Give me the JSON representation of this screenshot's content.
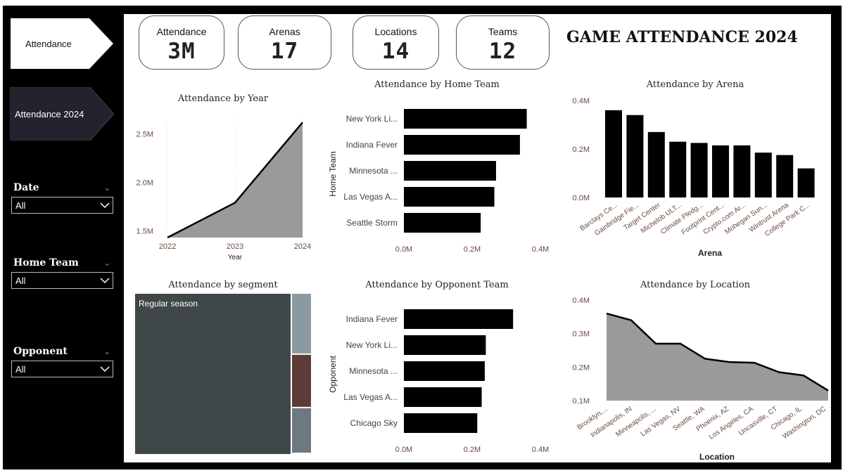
{
  "nav": {
    "btn1": "Attendance",
    "btn2": "Attendance 2024"
  },
  "slicers": [
    {
      "title": "Date",
      "value": "All"
    },
    {
      "title": "Home Team",
      "value": "All"
    },
    {
      "title": "Opponent",
      "value": "All"
    }
  ],
  "kpis": [
    {
      "label": "Attendance",
      "value": "3M"
    },
    {
      "label": "Arenas",
      "value": "17"
    },
    {
      "label": "Locations",
      "value": "14"
    },
    {
      "label": "Teams",
      "value": "12"
    }
  ],
  "page_title": "GAME ATTENDANCE 2024",
  "colors": {
    "bar": "#000000",
    "area": "#9a9a9a",
    "treemap_main": "#404748",
    "treemap_a": "#8a9aa0",
    "treemap_b": "#5c3c36",
    "treemap_c": "#6c7a80",
    "tick": "#6b4a3e"
  },
  "chart_data": [
    {
      "id": "year",
      "type": "area",
      "title": "Attendance by Year",
      "xlabel": "Year",
      "ylabel": "",
      "x": [
        "2022",
        "2023",
        "2024"
      ],
      "values": [
        1.43,
        1.79,
        2.62
      ],
      "yticks": [
        "1.5M",
        "2.0M",
        "2.5M"
      ],
      "ytick_values": [
        1.5,
        2.0,
        2.5
      ],
      "ylim": [
        1.43,
        2.65
      ]
    },
    {
      "id": "home",
      "type": "bar",
      "orientation": "horizontal",
      "title": "Attendance by Home Team",
      "xlabel": "",
      "ylabel": "Home Team",
      "categories": [
        "New York Li...",
        "Indiana Fever",
        "Minnesota ...",
        "Las Vegas A...",
        "Seattle Storm"
      ],
      "values": [
        0.36,
        0.34,
        0.27,
        0.265,
        0.225
      ],
      "xticks": [
        "0.0M",
        "0.2M",
        "0.4M"
      ],
      "xlim": [
        0,
        0.4
      ]
    },
    {
      "id": "arena",
      "type": "bar",
      "title": "Attendance by Arena",
      "xlabel": "Arena",
      "ylabel": "",
      "categories": [
        "Barclays Ce...",
        "Gainbridge Fie...",
        "Target Center",
        "Michelob ULT...",
        "Climate Pledg...",
        "Footprint Cent...",
        "Crypto.com Ar...",
        "Mohegan Sun...",
        "Wintrust Arena",
        "College Park C..."
      ],
      "values": [
        0.36,
        0.34,
        0.27,
        0.23,
        0.225,
        0.215,
        0.215,
        0.185,
        0.175,
        0.12
      ],
      "yticks": [
        "0.0M",
        "0.2M",
        "0.4M"
      ],
      "ylim": [
        0,
        0.4
      ]
    },
    {
      "id": "segment",
      "type": "treemap",
      "title": "Attendance by segment",
      "segments": [
        {
          "name": "Regular season",
          "value": 2.45
        },
        {
          "name": "",
          "value": 0.08
        },
        {
          "name": "",
          "value": 0.07
        },
        {
          "name": "",
          "value": 0.06
        }
      ]
    },
    {
      "id": "opponent",
      "type": "bar",
      "orientation": "horizontal",
      "title": "Attendance by Opponent Team",
      "xlabel": "",
      "ylabel": "Opponent",
      "categories": [
        "Indiana Fever",
        "New York Li...",
        "Minnesota ...",
        "Las Vegas A...",
        "Chicago Sky"
      ],
      "values": [
        0.32,
        0.24,
        0.237,
        0.228,
        0.215
      ],
      "xticks": [
        "0.0M",
        "0.2M",
        "0.4M"
      ],
      "xlim": [
        0,
        0.4
      ]
    },
    {
      "id": "location",
      "type": "area",
      "title": "Attendance by Location",
      "xlabel": "Location",
      "ylabel": "",
      "categories": [
        "Brooklyn,...",
        "Indianapolis, IN",
        "Minneapolis, ...",
        "Las Vegas, NV",
        "Seattle, WA",
        "Phoenix, AZ",
        "Los Angeles, CA",
        "Uncasville, CT",
        "Chicago, IL",
        "Washington, DC"
      ],
      "values": [
        0.36,
        0.34,
        0.27,
        0.27,
        0.225,
        0.215,
        0.213,
        0.185,
        0.175,
        0.13
      ],
      "yticks": [
        "0.1M",
        "0.2M",
        "0.3M",
        "0.4M"
      ],
      "ytick_values": [
        0.1,
        0.2,
        0.3,
        0.4
      ],
      "ylim": [
        0.1,
        0.4
      ]
    }
  ]
}
